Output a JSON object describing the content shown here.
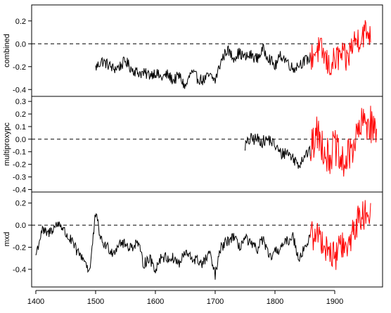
{
  "figure": {
    "type": "line",
    "colors": {
      "early": "#000000",
      "recent": "#ff0000",
      "zero_line": "#000000",
      "frame": "#000000"
    },
    "x_axis": {
      "ticks": [
        1400,
        1500,
        1600,
        1700,
        1800,
        1900
      ],
      "range": [
        1393,
        1980
      ]
    }
  },
  "chart_data": [
    {
      "type": "line",
      "ylabel": "combined",
      "ylim": [
        -0.46,
        0.34
      ],
      "yticks": [
        "0.2",
        "0.0",
        "-0.2",
        "-0.4"
      ],
      "yticks_values": [
        0.2,
        0.0,
        -0.2,
        -0.4
      ],
      "zero_line": 0.0,
      "split_year": 1860,
      "anchors_x": [
        1500,
        1510,
        1520,
        1530,
        1540,
        1550,
        1560,
        1570,
        1580,
        1590,
        1600,
        1610,
        1620,
        1630,
        1640,
        1650,
        1660,
        1670,
        1680,
        1690,
        1700,
        1710,
        1720,
        1730,
        1740,
        1750,
        1760,
        1770,
        1780,
        1790,
        1800,
        1810,
        1820,
        1830,
        1840,
        1850,
        1860,
        1870,
        1880,
        1890,
        1900,
        1910,
        1920,
        1930,
        1940,
        1950,
        1960
      ],
      "anchors_y": [
        -0.21,
        -0.15,
        -0.18,
        -0.22,
        -0.2,
        -0.15,
        -0.22,
        -0.25,
        -0.26,
        -0.27,
        -0.25,
        -0.3,
        -0.27,
        -0.32,
        -0.28,
        -0.38,
        -0.25,
        -0.3,
        -0.32,
        -0.28,
        -0.32,
        -0.15,
        -0.05,
        -0.12,
        -0.08,
        -0.12,
        -0.1,
        -0.13,
        -0.05,
        -0.12,
        -0.2,
        -0.1,
        -0.15,
        -0.22,
        -0.18,
        -0.15,
        -0.12,
        -0.05,
        -0.08,
        -0.2,
        -0.15,
        -0.1,
        -0.15,
        0.0,
        0.05,
        0.1,
        0.1
      ],
      "noise_amplitude": [
        0.05,
        0.13
      ],
      "x_start": 1500,
      "x_end": 1960
    },
    {
      "type": "line",
      "ylabel": "multiproxypc",
      "ylim": [
        -0.42,
        0.34
      ],
      "yticks": [
        "0.3",
        "0.2",
        "0.1",
        "0.0",
        "-0.1",
        "-0.2",
        "-0.3",
        "-0.4"
      ],
      "yticks_values": [
        0.3,
        0.2,
        0.1,
        0.0,
        -0.1,
        -0.2,
        -0.3,
        -0.4
      ],
      "zero_line": 0.0,
      "split_year": 1860,
      "anchors_x": [
        1750,
        1760,
        1770,
        1780,
        1790,
        1800,
        1810,
        1820,
        1830,
        1840,
        1850,
        1860,
        1870,
        1880,
        1890,
        1900,
        1910,
        1920,
        1930,
        1940,
        1950,
        1960,
        1970
      ],
      "anchors_y": [
        -0.05,
        0.0,
        0.0,
        -0.02,
        0.0,
        -0.05,
        -0.12,
        -0.1,
        -0.15,
        -0.2,
        -0.12,
        -0.1,
        0.05,
        -0.05,
        -0.15,
        -0.05,
        -0.2,
        -0.18,
        -0.05,
        0.05,
        0.15,
        0.12,
        0.05
      ],
      "noise_amplitude": [
        0.05,
        0.15
      ],
      "x_start": 1750,
      "x_end": 1970
    },
    {
      "type": "line",
      "ylabel": "mxd",
      "ylim": [
        -0.56,
        0.3
      ],
      "yticks": [
        "0.2",
        "0.0",
        "-0.2",
        "-0.4"
      ],
      "yticks_values": [
        0.2,
        0.0,
        -0.2,
        -0.4
      ],
      "zero_line": 0.0,
      "split_year": 1860,
      "anchors_x": [
        1400,
        1410,
        1420,
        1430,
        1440,
        1450,
        1460,
        1470,
        1480,
        1490,
        1500,
        1510,
        1520,
        1530,
        1540,
        1550,
        1560,
        1570,
        1580,
        1590,
        1600,
        1610,
        1620,
        1630,
        1640,
        1650,
        1660,
        1670,
        1680,
        1690,
        1700,
        1710,
        1720,
        1730,
        1740,
        1750,
        1760,
        1770,
        1780,
        1790,
        1800,
        1810,
        1820,
        1830,
        1840,
        1850,
        1860,
        1870,
        1880,
        1890,
        1900,
        1910,
        1920,
        1930,
        1940,
        1950,
        1960
      ],
      "anchors_y": [
        -0.27,
        -0.05,
        -0.08,
        -0.02,
        0.02,
        -0.08,
        -0.15,
        -0.25,
        -0.3,
        -0.42,
        0.1,
        -0.15,
        -0.2,
        -0.25,
        -0.15,
        -0.18,
        -0.2,
        -0.15,
        -0.35,
        -0.3,
        -0.4,
        -0.28,
        -0.3,
        -0.3,
        -0.35,
        -0.25,
        -0.3,
        -0.32,
        -0.35,
        -0.25,
        -0.45,
        -0.2,
        -0.15,
        -0.1,
        -0.2,
        -0.12,
        -0.18,
        -0.22,
        -0.12,
        -0.3,
        -0.25,
        -0.2,
        -0.15,
        -0.1,
        -0.3,
        -0.2,
        -0.1,
        -0.08,
        -0.15,
        -0.22,
        -0.3,
        -0.15,
        -0.25,
        -0.05,
        0.05,
        0.1,
        0.15
      ],
      "noise_amplitude": [
        0.05,
        0.14
      ],
      "x_start": 1400,
      "x_end": 1960
    }
  ]
}
